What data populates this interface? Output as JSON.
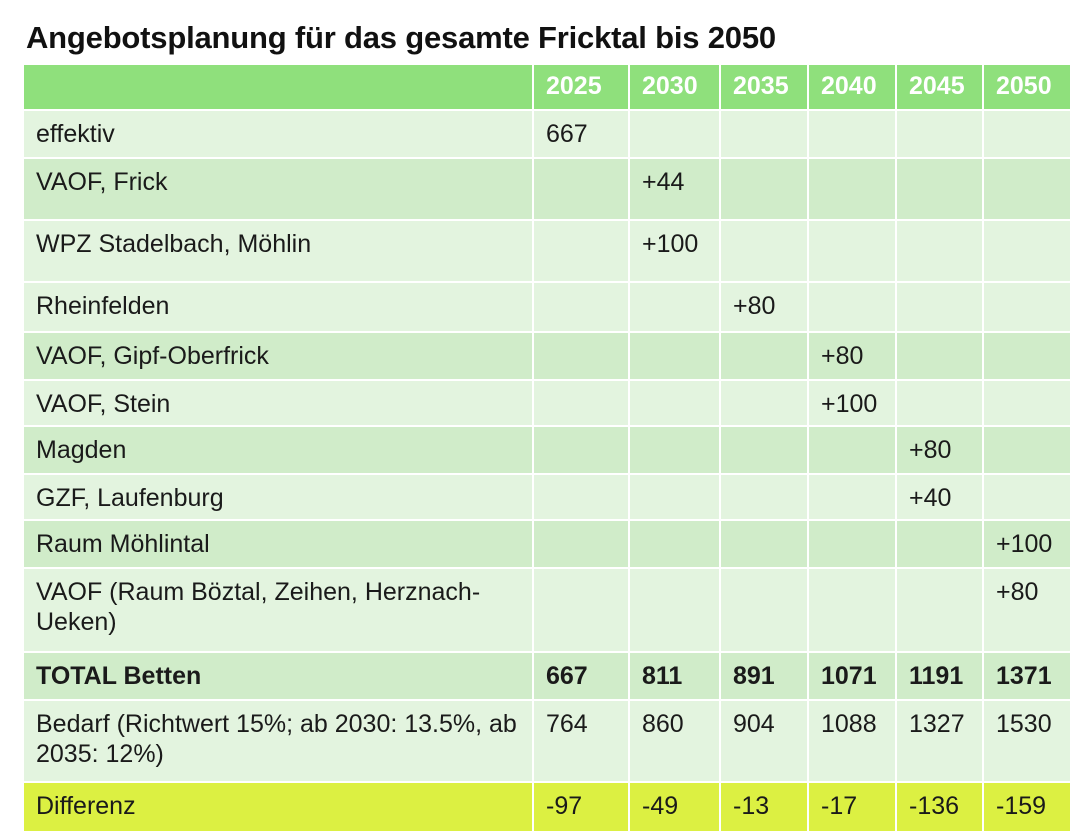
{
  "title": "Angebotsplanung für das gesamte Fricktal bis 2050",
  "table": {
    "header": [
      "",
      "2025",
      "2030",
      "2035",
      "2040",
      "2045",
      "2050"
    ],
    "rows": [
      {
        "label": "effektiv",
        "values": [
          "667",
          "",
          "",
          "",
          "",
          ""
        ]
      },
      {
        "label": "VAOF, Frick",
        "values": [
          "",
          "+44",
          "",
          "",
          "",
          ""
        ]
      },
      {
        "label": "WPZ Stadelbach, Möhlin",
        "values": [
          "",
          "+100",
          "",
          "",
          "",
          ""
        ]
      },
      {
        "label": "Rheinfelden",
        "values": [
          "",
          "",
          "+80",
          "",
          "",
          ""
        ]
      },
      {
        "label": "VAOF, Gipf-Oberfrick",
        "values": [
          "",
          "",
          "",
          "+80",
          "",
          ""
        ]
      },
      {
        "label": "VAOF, Stein",
        "values": [
          "",
          "",
          "",
          "+100",
          "",
          ""
        ]
      },
      {
        "label": "Magden",
        "values": [
          "",
          "",
          "",
          "",
          "+80",
          ""
        ]
      },
      {
        "label": "GZF, Laufenburg",
        "values": [
          "",
          "",
          "",
          "",
          "+40",
          ""
        ]
      },
      {
        "label": "Raum Möhlintal",
        "values": [
          "",
          "",
          "",
          "",
          "",
          "+100"
        ]
      },
      {
        "label": "VAOF (Raum Böztal, Zeihen, Herznach-Ueken)",
        "values": [
          "",
          "",
          "",
          "",
          "",
          "+80"
        ]
      },
      {
        "label": "TOTAL Betten",
        "values": [
          "667",
          "811",
          "891",
          "1071",
          "1191",
          "1371"
        ]
      },
      {
        "label": "Bedarf (Richtwert 15%; ab 2030: 13.5%, ab 2035: 12%)",
        "values": [
          "764",
          "860",
          "904",
          "1088",
          "1327",
          "1530"
        ]
      },
      {
        "label": "Differenz",
        "values": [
          "-97",
          "-49",
          "-13",
          "-17",
          "-136",
          "-159"
        ]
      }
    ]
  },
  "colors": {
    "header_bg": "#8fe07c",
    "row_light": "#e3f4df",
    "row_mid": "#d0ecc9",
    "diff_bg": "#dcf042"
  }
}
